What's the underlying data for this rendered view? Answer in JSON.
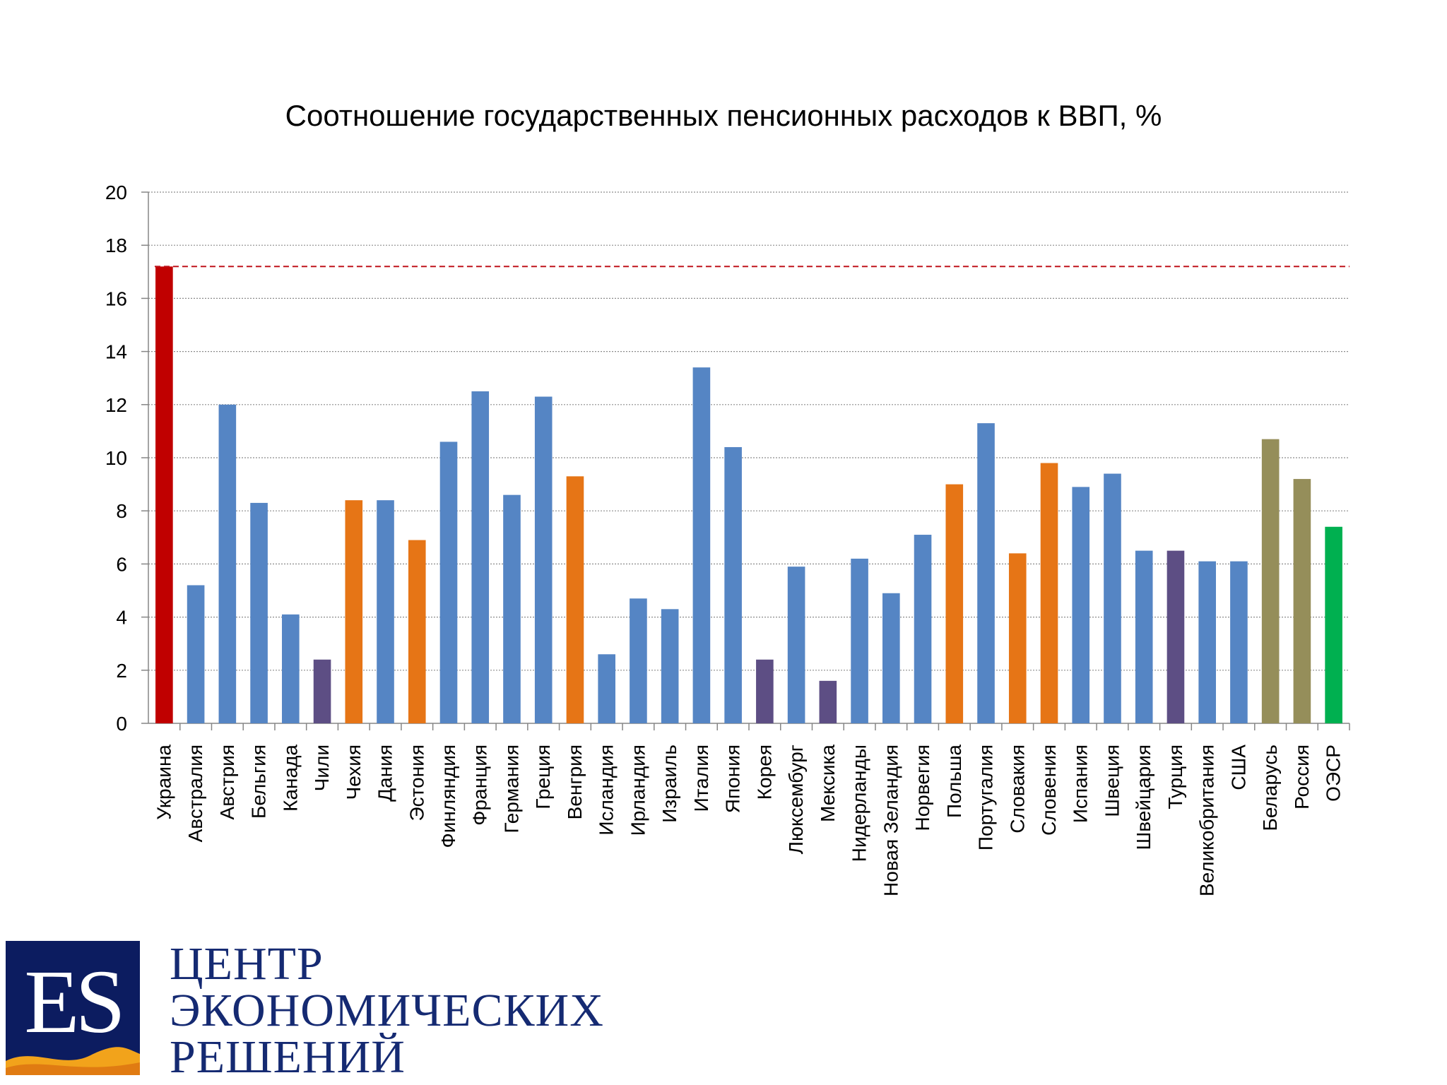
{
  "chart_data": {
    "type": "bar",
    "title": "Соотношение государственных пенсионных расходов к ВВП, %",
    "xlabel": "",
    "ylabel": "",
    "ylim": [
      0,
      20
    ],
    "yticks": [
      0,
      2,
      4,
      6,
      8,
      10,
      12,
      14,
      16,
      18,
      20
    ],
    "grid": true,
    "legend": "none",
    "reference_line": {
      "value": 17.2,
      "color": "#c0141c",
      "style": "dashed"
    },
    "categories": [
      "Украина",
      "Австралия",
      "Австрия",
      "Бельгия",
      "Канада",
      "Чили",
      "Чехия",
      "Дания",
      "Эстония",
      "Финляндия",
      "Франция",
      "Германия",
      "Греция",
      "Венгрия",
      "Исландия",
      "Ирландия",
      "Израиль",
      "Италия",
      "Япония",
      "Корея",
      "Люксембург",
      "Мексика",
      "Нидерланды",
      "Новая Зеландия",
      "Норвегия",
      "Польша",
      "Португалия",
      "Словакия",
      "Словения",
      "Испания",
      "Швеция",
      "Швейцария",
      "Турция",
      "Великобритания",
      "США",
      "Беларусь",
      "Россия",
      "ОЭСР"
    ],
    "values": [
      17.2,
      5.2,
      12.0,
      8.3,
      4.1,
      2.4,
      8.4,
      8.4,
      6.9,
      10.6,
      12.5,
      8.6,
      12.3,
      9.3,
      2.6,
      4.7,
      4.3,
      13.4,
      10.4,
      2.4,
      5.9,
      1.6,
      6.2,
      4.9,
      7.1,
      9.0,
      11.3,
      6.4,
      9.8,
      8.9,
      9.4,
      6.5,
      6.5,
      6.1,
      6.1,
      10.7,
      9.2,
      7.4
    ],
    "colors": [
      "#c00000",
      "#5585c4",
      "#5585c4",
      "#5585c4",
      "#5585c4",
      "#5d4e84",
      "#e67516",
      "#5585c4",
      "#e67516",
      "#5585c4",
      "#5585c4",
      "#5585c4",
      "#5585c4",
      "#e67516",
      "#5585c4",
      "#5585c4",
      "#5585c4",
      "#5585c4",
      "#5585c4",
      "#5d4e84",
      "#5585c4",
      "#5d4e84",
      "#5585c4",
      "#5585c4",
      "#5585c4",
      "#e67516",
      "#5585c4",
      "#e67516",
      "#e67516",
      "#5585c4",
      "#5585c4",
      "#5585c4",
      "#5d4e84",
      "#5585c4",
      "#5585c4",
      "#958e5a",
      "#958e5a",
      "#00b050"
    ]
  },
  "logo": {
    "letters": "ES",
    "line1": "Центр",
    "line2": "Экономических",
    "line3": "Решений"
  }
}
